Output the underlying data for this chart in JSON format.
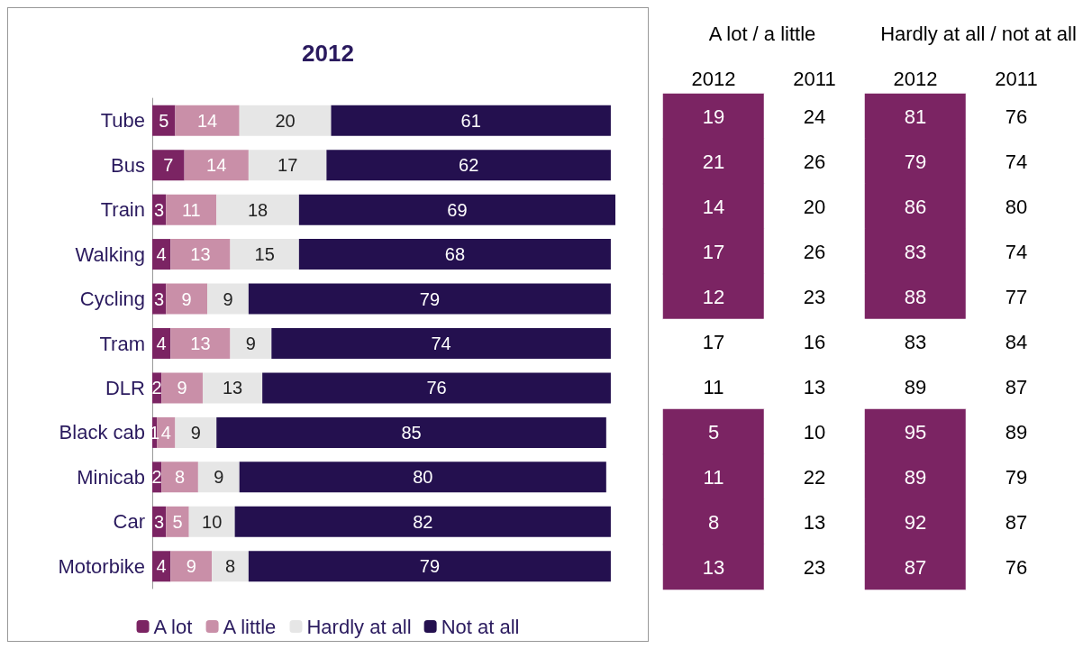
{
  "chart_data": [
    {
      "type": "bar",
      "title": "2012",
      "orientation": "horizontal",
      "stacked": true,
      "data_labels": true,
      "legend": "bottom",
      "categories": [
        "Tube",
        "Bus",
        "Train",
        "Walking",
        "Cycling",
        "Tram",
        "DLR",
        "Black cab",
        "Minicab",
        "Car",
        "Motorbike"
      ],
      "series": [
        {
          "name": "A lot",
          "color": "#7b2463",
          "values": [
            5,
            7,
            3,
            4,
            3,
            4,
            2,
            1,
            2,
            3,
            4
          ]
        },
        {
          "name": "A little",
          "color": "#c98fa8",
          "values": [
            14,
            14,
            11,
            13,
            9,
            13,
            9,
            4,
            8,
            5,
            9
          ]
        },
        {
          "name": "Hardly at all",
          "color": "#e6e6e6",
          "values": [
            20,
            17,
            18,
            15,
            9,
            9,
            13,
            9,
            9,
            10,
            8
          ]
        },
        {
          "name": "Not at all",
          "color": "#24104f",
          "values": [
            61,
            62,
            69,
            68,
            79,
            74,
            76,
            85,
            80,
            82,
            79
          ]
        }
      ]
    },
    {
      "type": "heatmap",
      "data_labels": true,
      "categories": [
        "2012",
        "2011",
        "2012",
        "2011"
      ],
      "annotations": [
        "A lot / a little",
        "Hardly at all / not at all"
      ],
      "y_categories": [
        null,
        null,
        null,
        null,
        null,
        null,
        null,
        null,
        null,
        null,
        null
      ],
      "cells": [
        [
          19,
          24,
          81,
          76
        ],
        [
          21,
          26,
          79,
          74
        ],
        [
          14,
          20,
          86,
          80
        ],
        [
          17,
          26,
          83,
          74
        ],
        [
          12,
          23,
          88,
          77
        ],
        [
          17,
          16,
          83,
          84
        ],
        [
          11,
          13,
          89,
          87
        ],
        [
          5,
          10,
          95,
          89
        ],
        [
          11,
          22,
          89,
          79
        ],
        [
          8,
          13,
          92,
          87
        ],
        [
          13,
          23,
          87,
          76
        ]
      ],
      "colors": [
        [
          "#7b2463",
          "#ffffff",
          "#7b2463",
          "#ffffff"
        ],
        [
          "#7b2463",
          "#ffffff",
          "#7b2463",
          "#ffffff"
        ],
        [
          "#7b2463",
          "#ffffff",
          "#7b2463",
          "#ffffff"
        ],
        [
          "#7b2463",
          "#ffffff",
          "#7b2463",
          "#ffffff"
        ],
        [
          "#7b2463",
          "#ffffff",
          "#7b2463",
          "#ffffff"
        ],
        [
          "#ffffff",
          "#ffffff",
          "#ffffff",
          "#ffffff"
        ],
        [
          "#ffffff",
          "#ffffff",
          "#ffffff",
          "#ffffff"
        ],
        [
          "#7b2463",
          "#ffffff",
          "#7b2463",
          "#ffffff"
        ],
        [
          "#7b2463",
          "#ffffff",
          "#7b2463",
          "#ffffff"
        ],
        [
          "#7b2463",
          "#ffffff",
          "#7b2463",
          "#ffffff"
        ],
        [
          "#7b2463",
          "#ffffff",
          "#7b2463",
          "#ffffff"
        ]
      ]
    }
  ]
}
